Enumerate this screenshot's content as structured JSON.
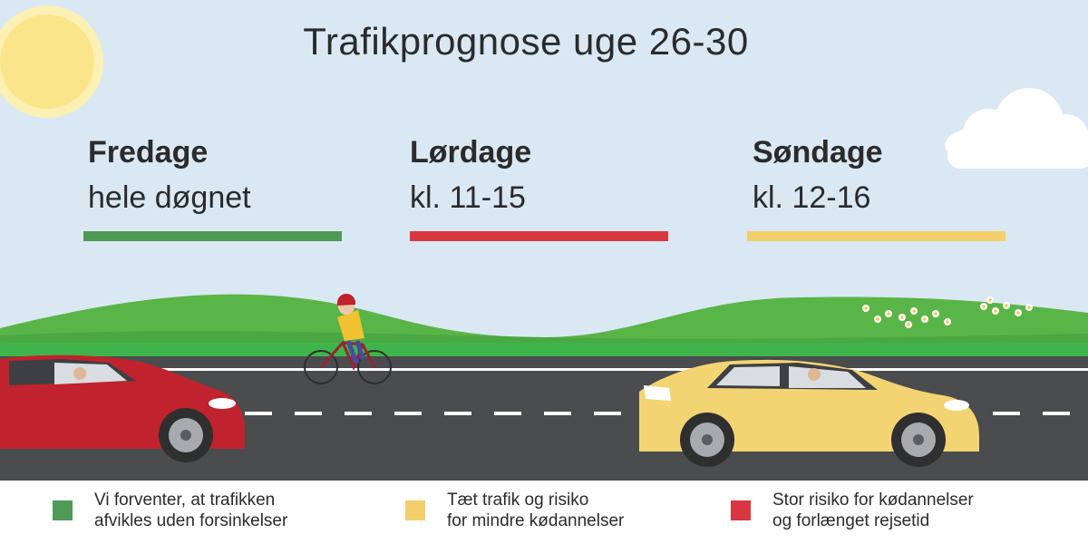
{
  "title": "Trafikprognose uge 26-30",
  "days": [
    {
      "name": "Fredage",
      "when": "hele døgnet",
      "color": "#4e9a56"
    },
    {
      "name": "Lørdage",
      "when": "kl. 11-15",
      "color": "#d9373f"
    },
    {
      "name": "Søndage",
      "when": "kl. 12-16",
      "color": "#f2cf6b"
    }
  ],
  "legend": [
    {
      "line1": "Vi forventer, at trafikken",
      "line2": "afvikles uden forsinkelser",
      "color": "#4e9a56"
    },
    {
      "line1": "Tæt trafik og risiko",
      "line2": "for mindre kødannelser",
      "color": "#f2cf6b"
    },
    {
      "line1": "Stor risiko for kødannelser",
      "line2": "og forlænget rejsetid",
      "color": "#d9373f"
    }
  ],
  "colors": {
    "sky": "#dae8f3",
    "sun": "#fbe58b",
    "hills": "#5ab548",
    "grass": "#3fb44a",
    "road": "#4a4c4e",
    "red_car": "#c0232d",
    "yellow_car": "#f3d472"
  }
}
